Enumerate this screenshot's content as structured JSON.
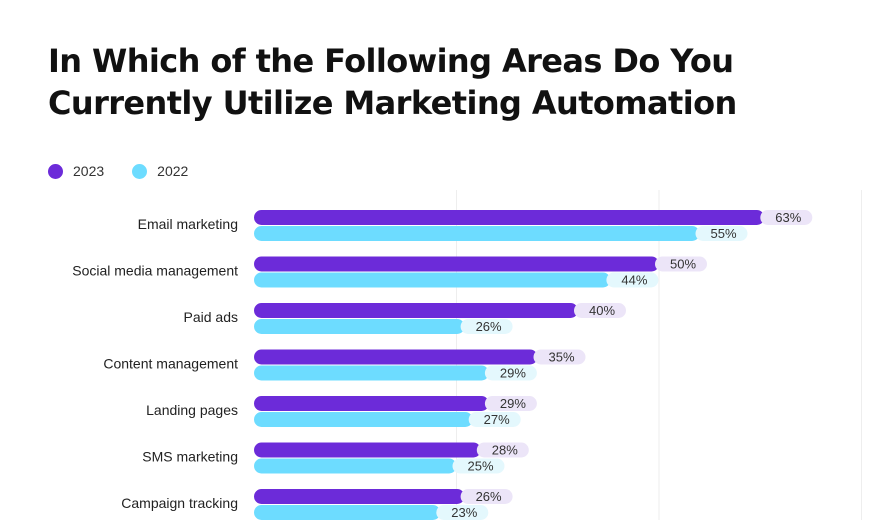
{
  "title_line1": "In Which of the Following Areas Do You",
  "title_line2": "Currently Utilize Marketing Automation",
  "colors": {
    "series_2023": "#6c2bd9",
    "series_2022": "#6ddcff",
    "pill_2023": "#ece5f8",
    "pill_2022": "#e4f8fd",
    "grid": "#eeeeee"
  },
  "chart_data": {
    "type": "bar",
    "orientation": "horizontal",
    "title": "In Which of the Following Areas Do You Currently Utilize Marketing Automation",
    "categories": [
      "Email marketing",
      "Social media management",
      "Paid ads",
      "Content management",
      "Landing pages",
      "SMS marketing",
      "Campaign tracking"
    ],
    "series": [
      {
        "name": "2023",
        "values": [
          63,
          50,
          40,
          35,
          29,
          28,
          26
        ],
        "labels": [
          "63%",
          "50%",
          "40%",
          "35%",
          "29%",
          "28%",
          "26%"
        ]
      },
      {
        "name": "2022",
        "values": [
          55,
          44,
          26,
          29,
          27,
          25,
          23
        ],
        "labels": [
          "55%",
          "44%",
          "26%",
          "29%",
          "27%",
          "25%",
          "23%"
        ]
      }
    ],
    "unit": "%",
    "xlim": [
      0,
      75
    ],
    "legend": "top-left",
    "grid": true
  }
}
